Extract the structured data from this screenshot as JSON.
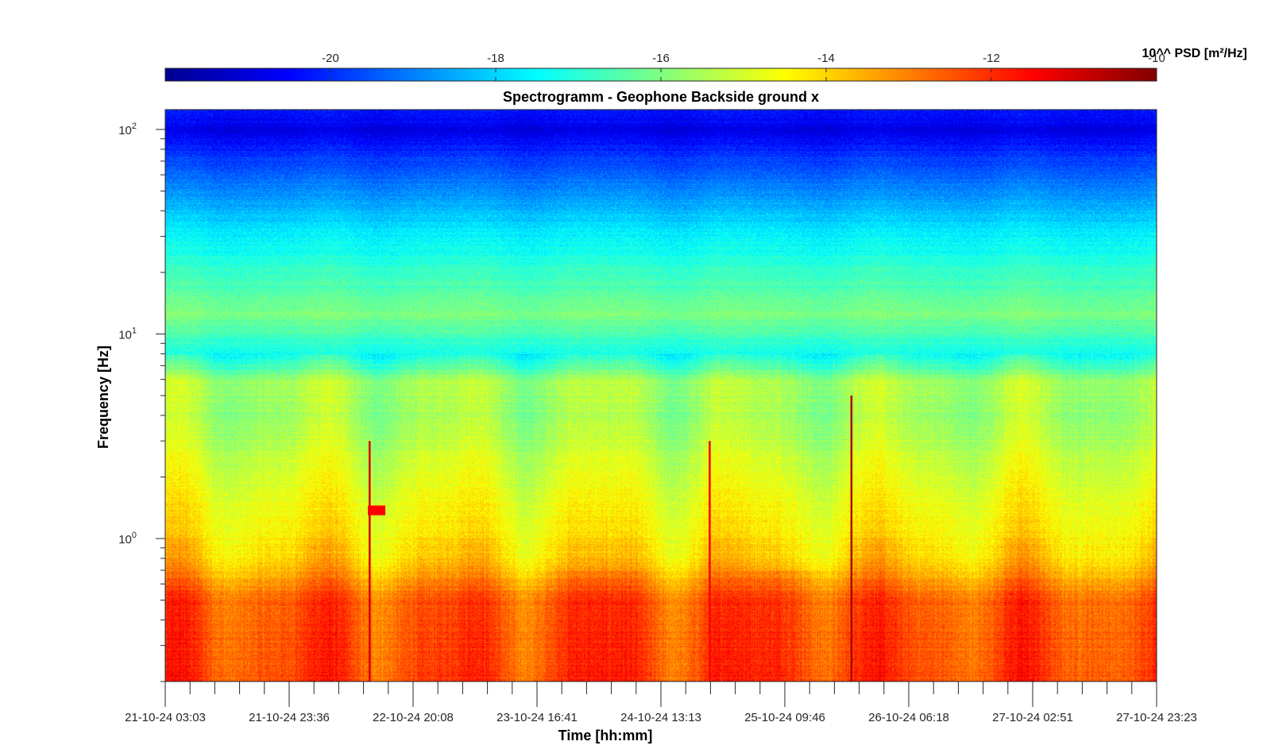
{
  "chart_data": {
    "type": "heatmap",
    "title": "Spectrogramm - Geophone Backside ground x",
    "xlabel": "Time [hh:mm]",
    "ylabel": "Frequency [Hz]",
    "yscale": "log",
    "ylim": [
      0.2,
      125
    ],
    "y_ticks": [
      {
        "value": 1,
        "base": "10",
        "exp": "0"
      },
      {
        "value": 10,
        "base": "10",
        "exp": "1"
      },
      {
        "value": 100,
        "base": "10",
        "exp": "2"
      }
    ],
    "x_tick_labels": [
      "21-10-24 03:03",
      "21-10-24 23:36",
      "22-10-24 20:08",
      "23-10-24 16:41",
      "24-10-24 13:13",
      "25-10-24 09:46",
      "26-10-24 06:18",
      "27-10-24 02:51",
      "27-10-24 23:23"
    ],
    "colorbar": {
      "label": "10^^ PSD [m²/Hz]",
      "range": [
        -22,
        -10
      ],
      "ticks": [
        -20,
        -18,
        -16,
        -14,
        -12,
        -10
      ],
      "colormap": "jet"
    },
    "grid": false,
    "log10_psd_profile": [
      {
        "frequency_hz": 0.2,
        "log10_psd": -12.3
      },
      {
        "frequency_hz": 0.5,
        "log10_psd": -12.5
      },
      {
        "frequency_hz": 0.8,
        "log10_psd": -14.0
      },
      {
        "frequency_hz": 1.5,
        "log10_psd": -14.6
      },
      {
        "frequency_hz": 4.0,
        "log10_psd": -15.6
      },
      {
        "frequency_hz": 5.8,
        "log10_psd": -15.5
      },
      {
        "frequency_hz": 8.0,
        "log10_psd": -17.3
      },
      {
        "frequency_hz": 12.5,
        "log10_psd": -16.0
      },
      {
        "frequency_hz": 30,
        "log10_psd": -17.6
      },
      {
        "frequency_hz": 60,
        "log10_psd": -19.3
      },
      {
        "frequency_hz": 100,
        "log10_psd": -20.8
      },
      {
        "frequency_hz": 125,
        "log10_psd": -20.2
      }
    ],
    "transient_events": [
      {
        "time": "22-10-24 ~11:30",
        "frequency_hz": [
          0.2,
          3.0
        ],
        "log10_psd": -11.0
      },
      {
        "time": "22-10-24 ~11:30",
        "frequency_hz": [
          1.3,
          1.45
        ],
        "log10_psd": -11.5
      },
      {
        "time": "24-10-24 ~20:00",
        "frequency_hz": [
          0.2,
          3.0
        ],
        "log10_psd": -11.5
      },
      {
        "time": "25-10-24 ~19:30",
        "frequency_hz": [
          0.2,
          5.0
        ],
        "log10_psd": -10.5
      }
    ]
  }
}
